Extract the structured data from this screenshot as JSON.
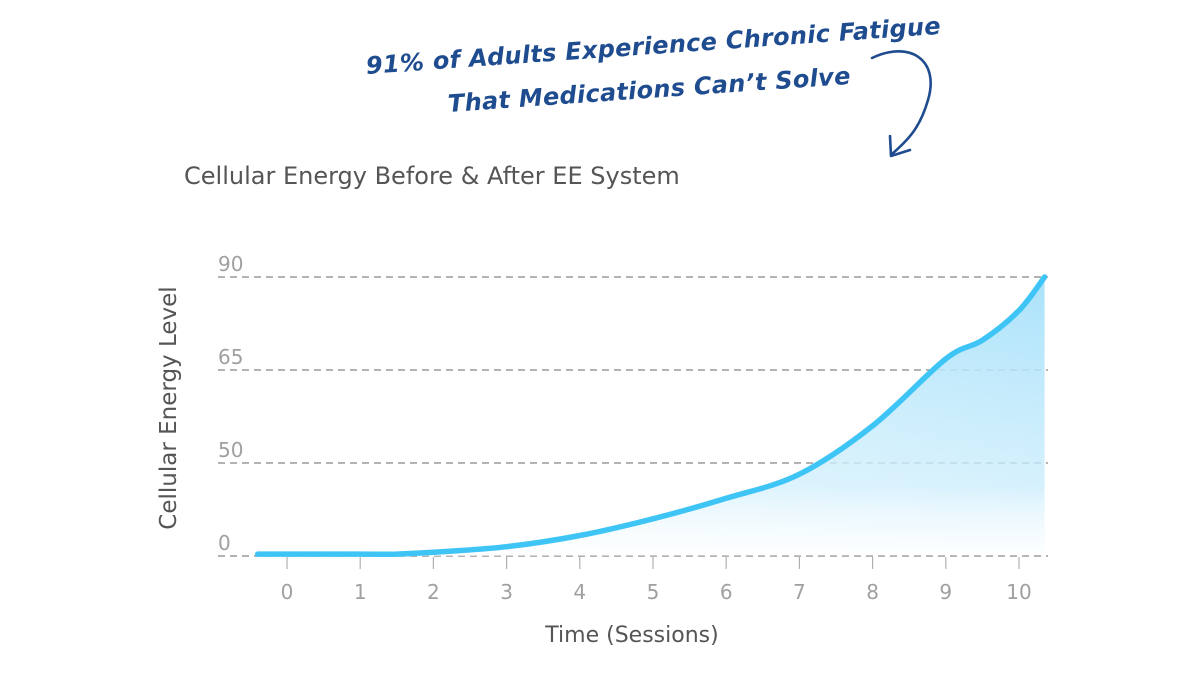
{
  "callout": {
    "line1": "91% of Adults Experience Chronic Fatigue",
    "line2": "That Medications Can’t Solve",
    "color": "#1e4c8f"
  },
  "chart_data": {
    "type": "area",
    "title": "Cellular Energy Before & After EE System",
    "xlabel": "Time (Sessions)",
    "ylabel": "Cellular Energy Level",
    "x_ticks": [
      "0",
      "1",
      "2",
      "3",
      "4",
      "5",
      "6",
      "7",
      "8",
      "9",
      "10"
    ],
    "y_ticks": [
      "0",
      "50",
      "65",
      "90"
    ],
    "xlim": [
      -0.4,
      10.35
    ],
    "ylim": [
      0,
      90
    ],
    "grid": true,
    "grid_style": "dashed",
    "series": [
      {
        "x": [
          -0.4,
          0,
          1,
          1.5,
          2,
          3,
          4,
          5,
          6,
          7,
          8,
          9,
          9.5,
          10,
          10.35
        ],
        "y": [
          1,
          1,
          1,
          1,
          2,
          5,
          11,
          20,
          31,
          44,
          56,
          68,
          73,
          81,
          90
        ],
        "color": "#3ec5f5"
      }
    ],
    "colors": {
      "line": "#3ec5f5",
      "fill": "#b5e6fb",
      "grid": "#9a9a9a",
      "tick_label": "#a0a0a0",
      "axis_label": "#555555"
    }
  }
}
